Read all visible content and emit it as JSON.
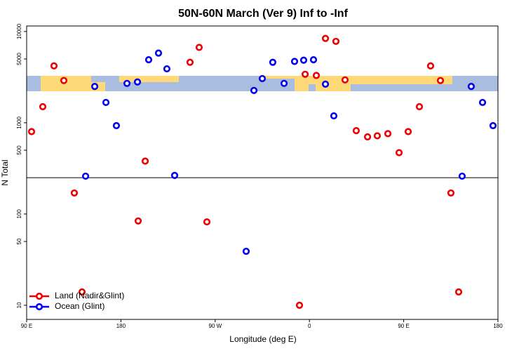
{
  "chart_data": {
    "type": "scatter",
    "title": "50N-60N March (Ver 9)   Inf to -Inf",
    "x_label": "Longitude (deg E)",
    "y_label": "N Total",
    "log_y": true,
    "xlim": [
      90,
      540
    ],
    "ylim": [
      7,
      11500
    ],
    "xticks": [
      {
        "value": 90,
        "label": "90 E"
      },
      {
        "value": 180,
        "label": "180"
      },
      {
        "value": 270,
        "label": "90 W"
      },
      {
        "value": 360,
        "label": "0"
      },
      {
        "value": 450,
        "label": "90 E"
      },
      {
        "value": 540,
        "label": "180"
      }
    ],
    "yticks": [
      10,
      50,
      100,
      500,
      1000,
      5000,
      10000
    ],
    "hline": 250,
    "legend": "bottom-left",
    "series": [
      {
        "name": "Land (Nadir&Glint)",
        "color": "#ee0000",
        "x": [
          94.7,
          105.4,
          116.1,
          125.5,
          135.5,
          142.9,
          196.5,
          203.2,
          246,
          254.7,
          262.1,
          350.5,
          355.9,
          366.6,
          375.3,
          385.3,
          394,
          404.7,
          415.5,
          424.8,
          434.9,
          445.6,
          454.3,
          465,
          475.7,
          485.1,
          495.1,
          502.5
        ],
        "values": [
          800,
          1500,
          4200,
          2900,
          170,
          14,
          84,
          380,
          4600,
          6700,
          82,
          10,
          3400,
          3300,
          8400,
          7800,
          2950,
          820,
          700,
          720,
          760,
          470,
          800,
          1500,
          4200,
          2900,
          170,
          14
        ]
      },
      {
        "name": "Ocean (Glint)",
        "color": "#0000ee",
        "x": [
          146.3,
          155,
          165.7,
          175.7,
          185.8,
          195.8,
          206.5,
          215.9,
          223.9,
          231.3,
          299.6,
          307,
          315,
          325,
          335.8,
          345.8,
          354.5,
          363.9,
          375.3,
          383.3,
          505.8,
          514.5,
          525.3,
          535.3
        ],
        "values": [
          260,
          2500,
          1670,
          930,
          2700,
          2800,
          4900,
          5800,
          3900,
          265,
          39,
          2260,
          3050,
          4600,
          2700,
          4700,
          4850,
          4900,
          2650,
          1190,
          260,
          2500,
          1670,
          930
        ]
      }
    ]
  }
}
